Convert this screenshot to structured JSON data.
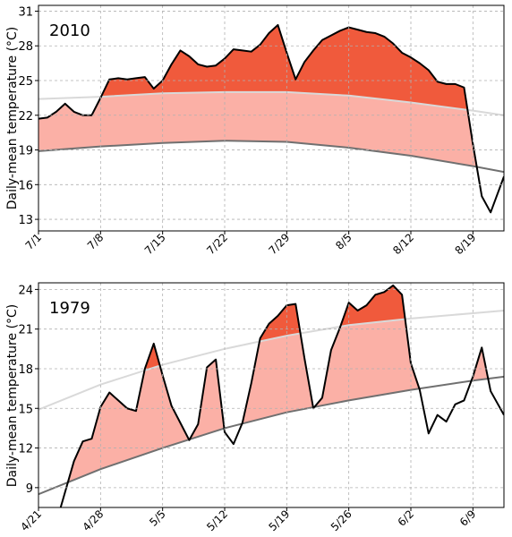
{
  "chart_data": [
    {
      "type": "line",
      "title": "2010",
      "ylabel": "Daily-mean temperature (°C)",
      "ylim": [
        12,
        31.5
      ],
      "xlim": [
        0,
        52.5
      ],
      "yticks": [
        13,
        16,
        19,
        22,
        25,
        28,
        31
      ],
      "xticks": [
        {
          "x": 0,
          "label": "7/1"
        },
        {
          "x": 7,
          "label": "7/8"
        },
        {
          "x": 14,
          "label": "7/15"
        },
        {
          "x": 21,
          "label": "7/22"
        },
        {
          "x": 28,
          "label": "7/29"
        },
        {
          "x": 35,
          "label": "8/5"
        },
        {
          "x": 42,
          "label": "8/12"
        },
        {
          "x": 49,
          "label": "8/19"
        }
      ],
      "grid": true,
      "colors": {
        "line": "#000000",
        "upper_band": "#d9d9d9",
        "lower_band": "#707070",
        "above_fill": "#f05a3c",
        "between_fill": "#fbb0a6"
      },
      "series": [
        {
          "values": [
            [
              0,
              21.7
            ],
            [
              1,
              21.8
            ],
            [
              2,
              22.3
            ],
            [
              3,
              23.0
            ],
            [
              4,
              22.3
            ],
            [
              5,
              22.0
            ],
            [
              6,
              22.0
            ],
            [
              7,
              23.5
            ],
            [
              8,
              25.1
            ],
            [
              9,
              25.2
            ],
            [
              10,
              25.1
            ],
            [
              11,
              25.2
            ],
            [
              12,
              25.3
            ],
            [
              13,
              24.3
            ],
            [
              14,
              25.0
            ],
            [
              15,
              26.4
            ],
            [
              16,
              27.6
            ],
            [
              17,
              27.1
            ],
            [
              18,
              26.4
            ],
            [
              19,
              26.2
            ],
            [
              20,
              26.3
            ],
            [
              21,
              26.9
            ],
            [
              22,
              27.7
            ],
            [
              23,
              27.6
            ],
            [
              24,
              27.5
            ],
            [
              25,
              28.1
            ],
            [
              26,
              29.1
            ],
            [
              27,
              29.8
            ],
            [
              28,
              27.4
            ],
            [
              29,
              25.1
            ],
            [
              30,
              26.6
            ],
            [
              31,
              27.6
            ],
            [
              32,
              28.5
            ],
            [
              33,
              28.9
            ],
            [
              34,
              29.3
            ],
            [
              35,
              29.6
            ],
            [
              36,
              29.4
            ],
            [
              37,
              29.2
            ],
            [
              38,
              29.1
            ],
            [
              39,
              28.8
            ],
            [
              40,
              28.2
            ],
            [
              41,
              27.4
            ],
            [
              42,
              27.0
            ],
            [
              43,
              26.5
            ],
            [
              44,
              25.9
            ],
            [
              45,
              24.9
            ],
            [
              46,
              24.7
            ],
            [
              47,
              24.7
            ],
            [
              48,
              24.4
            ],
            [
              49,
              19.5
            ],
            [
              50,
              15.0
            ],
            [
              51,
              13.6
            ],
            [
              52.5,
              16.7
            ]
          ]
        },
        {
          "values": [
            [
              0,
              23.4
            ],
            [
              7,
              23.6
            ],
            [
              14,
              23.9
            ],
            [
              21,
              24.0
            ],
            [
              28,
              24.0
            ],
            [
              35,
              23.7
            ],
            [
              42,
              23.1
            ],
            [
              49,
              22.4
            ],
            [
              52.5,
              22.0
            ]
          ]
        },
        {
          "values": [
            [
              0,
              18.9
            ],
            [
              7,
              19.3
            ],
            [
              14,
              19.6
            ],
            [
              21,
              19.8
            ],
            [
              28,
              19.7
            ],
            [
              35,
              19.2
            ],
            [
              42,
              18.5
            ],
            [
              49,
              17.6
            ],
            [
              52.5,
              17.1
            ]
          ]
        }
      ]
    },
    {
      "type": "line",
      "title": "1979",
      "ylabel": "Daily-mean temperature (°C)",
      "ylim": [
        7.5,
        24.5
      ],
      "xlim": [
        0,
        52.5
      ],
      "yticks": [
        9,
        12,
        15,
        18,
        21,
        24
      ],
      "xticks": [
        {
          "x": 0,
          "label": "4/21"
        },
        {
          "x": 7,
          "label": "4/28"
        },
        {
          "x": 14,
          "label": "5/5"
        },
        {
          "x": 21,
          "label": "5/12"
        },
        {
          "x": 28,
          "label": "5/19"
        },
        {
          "x": 35,
          "label": "5/26"
        },
        {
          "x": 42,
          "label": "6/2"
        },
        {
          "x": 49,
          "label": "6/9"
        }
      ],
      "grid": true,
      "colors": {
        "line": "#000000",
        "upper_band": "#d9d9d9",
        "lower_band": "#707070",
        "above_fill": "#f05a3c",
        "between_fill": "#fbb0a6"
      },
      "series": [
        {
          "values": [
            [
              2.5,
              7.5
            ],
            [
              4,
              11.0
            ],
            [
              5,
              12.5
            ],
            [
              6,
              12.7
            ],
            [
              7,
              15.1
            ],
            [
              8,
              16.2
            ],
            [
              9,
              15.6
            ],
            [
              10,
              15.0
            ],
            [
              11,
              14.8
            ],
            [
              12,
              18.0
            ],
            [
              13,
              19.9
            ],
            [
              14,
              17.5
            ],
            [
              15,
              15.2
            ],
            [
              16,
              13.9
            ],
            [
              17,
              12.6
            ],
            [
              18,
              13.8
            ],
            [
              19,
              18.1
            ],
            [
              20,
              18.7
            ],
            [
              21,
              13.2
            ],
            [
              22,
              12.3
            ],
            [
              23,
              13.9
            ],
            [
              24,
              16.9
            ],
            [
              25,
              20.3
            ],
            [
              26,
              21.4
            ],
            [
              27,
              22.0
            ],
            [
              28,
              22.8
            ],
            [
              29,
              22.9
            ],
            [
              30,
              18.8
            ],
            [
              31,
              15.0
            ],
            [
              32,
              15.8
            ],
            [
              33,
              19.4
            ],
            [
              34,
              21.1
            ],
            [
              35,
              23.0
            ],
            [
              36,
              22.4
            ],
            [
              37,
              22.8
            ],
            [
              38,
              23.6
            ],
            [
              39,
              23.8
            ],
            [
              40,
              24.3
            ],
            [
              41,
              23.6
            ],
            [
              42,
              18.4
            ],
            [
              43,
              16.4
            ],
            [
              44,
              13.1
            ],
            [
              45,
              14.5
            ],
            [
              46,
              14.0
            ],
            [
              47,
              15.3
            ],
            [
              48,
              15.6
            ],
            [
              49,
              17.4
            ],
            [
              50,
              19.6
            ],
            [
              51,
              16.3
            ],
            [
              52.5,
              14.5
            ]
          ]
        },
        {
          "values": [
            [
              0,
              14.9
            ],
            [
              7,
              16.8
            ],
            [
              14,
              18.3
            ],
            [
              21,
              19.5
            ],
            [
              28,
              20.5
            ],
            [
              35,
              21.3
            ],
            [
              42,
              21.8
            ],
            [
              49,
              22.2
            ],
            [
              52.5,
              22.4
            ]
          ]
        },
        {
          "values": [
            [
              0,
              8.5
            ],
            [
              7,
              10.4
            ],
            [
              14,
              12.0
            ],
            [
              21,
              13.5
            ],
            [
              28,
              14.7
            ],
            [
              35,
              15.6
            ],
            [
              42,
              16.4
            ],
            [
              49,
              17.1
            ],
            [
              52.5,
              17.4
            ]
          ]
        }
      ]
    }
  ]
}
